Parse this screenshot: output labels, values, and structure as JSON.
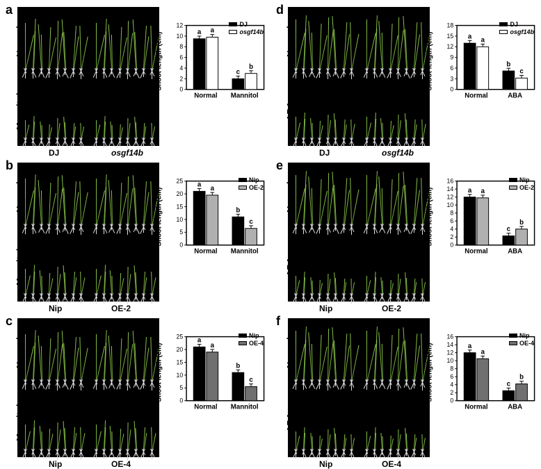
{
  "panels": [
    {
      "id": "a",
      "photo": {
        "row1": "Normal",
        "row2": "Mannitol",
        "x1": "DJ",
        "x2": "osgf14b",
        "x2_italic": true,
        "topHeight": 65,
        "botHeight": 25
      },
      "chart": {
        "ylabel": "Shoot length (cm)",
        "ymax": 12,
        "ytick": 2,
        "xcats": [
          "Normal",
          "Mannitol"
        ],
        "series": [
          {
            "name": "DJ",
            "color": "#000000",
            "vals": [
              9.5,
              2.0
            ],
            "letters": [
              "a",
              "c"
            ]
          },
          {
            "name": "osgf14b",
            "color": "#ffffff",
            "vals": [
              9.8,
              3.0
            ],
            "letters": [
              "a",
              "b"
            ],
            "italic": true
          }
        ]
      }
    },
    {
      "id": "d",
      "photo": {
        "row1": "Normal",
        "row2": "ABA",
        "x1": "DJ",
        "x2": "osgf14b",
        "x2_italic": true,
        "topHeight": 70,
        "botHeight": 30
      },
      "chart": {
        "ylabel": "Shoot length (cm)",
        "ymax": 18,
        "ytick": 3,
        "xcats": [
          "Normal",
          "ABA"
        ],
        "series": [
          {
            "name": "DJ",
            "color": "#000000",
            "vals": [
              13,
              5.2
            ],
            "letters": [
              "a",
              "b"
            ]
          },
          {
            "name": "osgf14b",
            "color": "#ffffff",
            "vals": [
              12,
              3.2
            ],
            "letters": [
              "a",
              "c"
            ],
            "italic": true
          }
        ]
      }
    },
    {
      "id": "b",
      "photo": {
        "row1": "Normal",
        "row2": "Mannitol",
        "x1": "Nip",
        "x2": "OE-2",
        "topHeight": 65,
        "botHeight": 35
      },
      "chart": {
        "ylabel": "Shoot length (cm)",
        "ymax": 25,
        "ytick": 5,
        "xcats": [
          "Normal",
          "Mannitol"
        ],
        "series": [
          {
            "name": "Nip",
            "color": "#000000",
            "vals": [
              21,
              11
            ],
            "letters": [
              "a",
              "b"
            ]
          },
          {
            "name": "OE-2",
            "color": "#b0b0b0",
            "vals": [
              19.5,
              6.5
            ],
            "letters": [
              "a",
              "c"
            ]
          }
        ]
      }
    },
    {
      "id": "e",
      "photo": {
        "row1": "Normal",
        "row2": "ABA",
        "x1": "Nip",
        "x2": "OE-2",
        "topHeight": 70,
        "botHeight": 25
      },
      "chart": {
        "ylabel": "Shoot length (cm)",
        "ymax": 16,
        "ytick": 2,
        "xcats": [
          "Normal",
          "ABA"
        ],
        "series": [
          {
            "name": "Nip",
            "color": "#000000",
            "vals": [
              12,
              2.3
            ],
            "letters": [
              "a",
              "c"
            ]
          },
          {
            "name": "OE-2",
            "color": "#b0b0b0",
            "vals": [
              11.8,
              4.0
            ],
            "letters": [
              "a",
              "b"
            ]
          }
        ]
      }
    },
    {
      "id": "c",
      "photo": {
        "row1": "Normal",
        "row2": "Mannitol",
        "x1": "Nip",
        "x2": "OE-4",
        "topHeight": 65,
        "botHeight": 35
      },
      "chart": {
        "ylabel": "Shoot length (cm)",
        "ymax": 25,
        "ytick": 5,
        "xcats": [
          "Normal",
          "Mannitol"
        ],
        "series": [
          {
            "name": "Nip",
            "color": "#000000",
            "vals": [
              21,
              11
            ],
            "letters": [
              "a",
              "b"
            ]
          },
          {
            "name": "OE-4",
            "color": "#707070",
            "vals": [
              19,
              5.5
            ],
            "letters": [
              "a",
              "c"
            ]
          }
        ]
      }
    },
    {
      "id": "f",
      "photo": {
        "row1": "Normal",
        "row2": "ABA",
        "x1": "Nip",
        "x2": "OE-4",
        "topHeight": 70,
        "botHeight": 25
      },
      "chart": {
        "ylabel": "Shoot length (cm)",
        "ymax": 16,
        "ytick": 2,
        "xcats": [
          "Normal",
          "ABA"
        ],
        "series": [
          {
            "name": "Nip",
            "color": "#000000",
            "vals": [
              12,
              2.5
            ],
            "letters": [
              "a",
              "c"
            ]
          },
          {
            "name": "OE-4",
            "color": "#707070",
            "vals": [
              10.5,
              4.2
            ],
            "letters": [
              "a",
              "b"
            ]
          }
        ]
      }
    }
  ],
  "chart_style": {
    "axis_color": "#000000",
    "axis_width": 1.5,
    "bar_stroke": "#000000",
    "font_size_ticks": 9,
    "font_size_letters": 10,
    "error_cap": 3,
    "error_h": 4
  }
}
